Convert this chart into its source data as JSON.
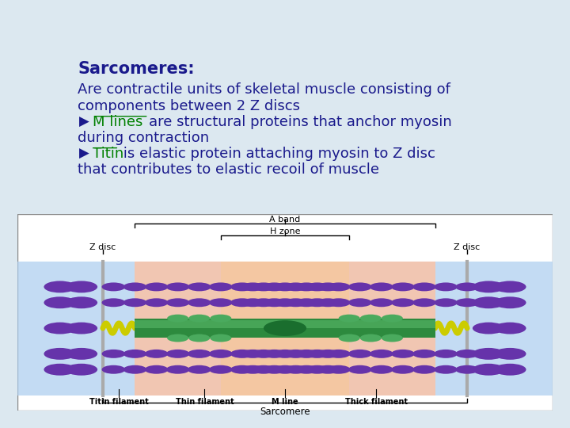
{
  "background_color": "#dce8f0",
  "title": "Sarcomeres:",
  "title_color": "#1a1a8c",
  "title_fontsize": 15,
  "body_color": "#1a1a8c",
  "body_fontsize": 13,
  "line1": "Are contractile units of skeletal muscle consisting of",
  "line2": "components between 2 Z discs",
  "bullet1_arrow": "▶",
  "bullet1_link": "M lines ",
  "bullet1_link_color": "#008000",
  "bullet1_rest": "are structural proteins that anchor myosin",
  "bullet1_cont": "during contraction",
  "bullet2_arrow": "▶",
  "bullet2_link": "Titin",
  "bullet2_link_color": "#008000",
  "bullet2_rest": " is elastic protein attaching myosin to Z disc",
  "bullet2_cont": "that contributes to elastic recoil of muscle",
  "aband_color": "#e8a080",
  "hzone_color": "#f5c8a0",
  "lband_color": "#aaccee",
  "thick_color": "#2d8a3e",
  "thin_color": "#6633aa",
  "titin_color": "#cccc00",
  "mline_color": "#1a6e2e"
}
